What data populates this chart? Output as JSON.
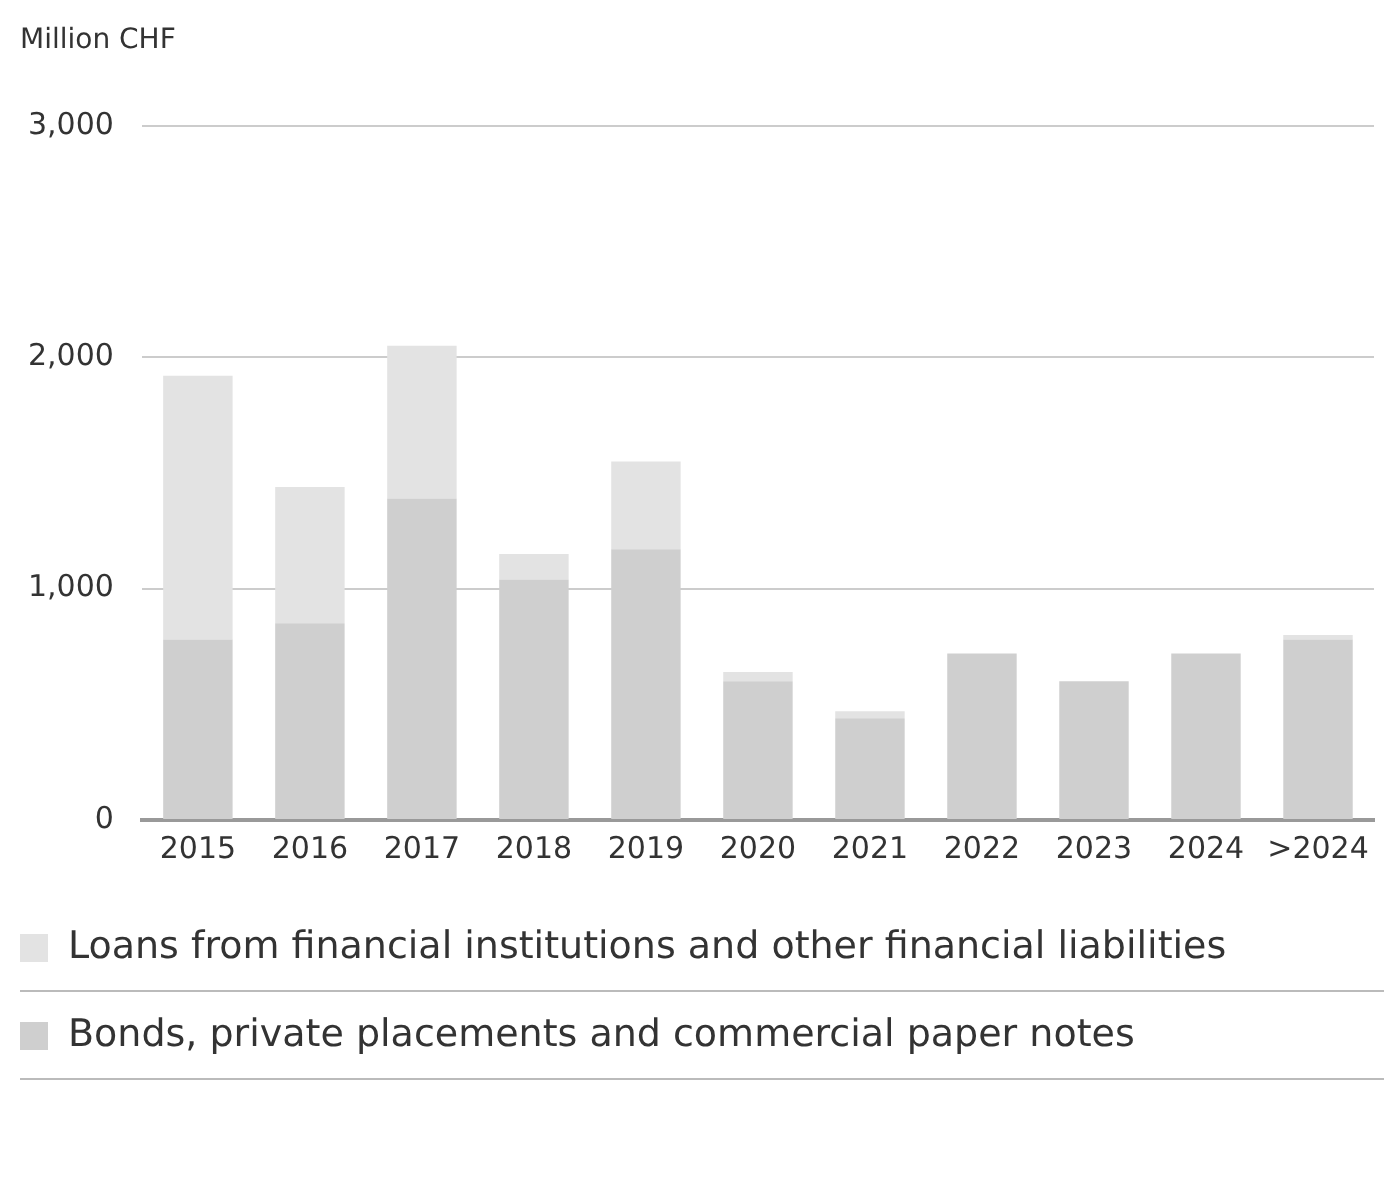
{
  "chart_data": {
    "type": "bar",
    "ylabel": "Million CHF",
    "stacked": true,
    "grid": "y",
    "legend": "bottom",
    "categories": [
      "2015",
      "2016",
      "2017",
      "2018",
      "2019",
      "2020",
      "2021",
      "2022",
      "2023",
      "2024",
      ">2024"
    ],
    "ylim": [
      0,
      3000
    ],
    "yticks": [
      {
        "value": 0,
        "label": "0"
      },
      {
        "value": 1000,
        "label": "1,000"
      },
      {
        "value": 2000,
        "label": "2,000"
      },
      {
        "value": 3000,
        "label": "3,000"
      }
    ],
    "series": [
      {
        "name": "Bonds, private placements and commercial paper notes",
        "color": "#cfcfcf",
        "values": [
          780,
          850,
          1390,
          1040,
          1170,
          600,
          440,
          720,
          600,
          720,
          780
        ]
      },
      {
        "name": "Loans from financial institutions and other financial liabilities",
        "color": "#e3e3e3",
        "values": [
          1140,
          590,
          660,
          110,
          380,
          40,
          30,
          0,
          0,
          0,
          20
        ]
      }
    ]
  }
}
